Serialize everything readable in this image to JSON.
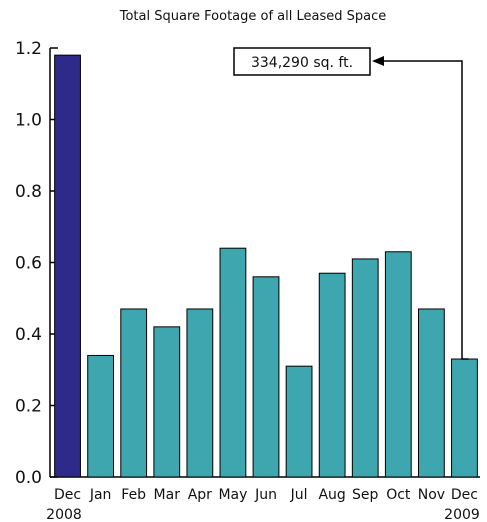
{
  "chart_data": {
    "type": "bar",
    "title": "Total Square Footage of all Leased Space",
    "xlabel": "",
    "ylabel": "",
    "ylim": [
      0,
      1.2
    ],
    "yticks": [
      "0.0",
      "0.2",
      "0.4",
      "0.6",
      "0.8",
      "1.0",
      "1.2"
    ],
    "categories": [
      "Dec",
      "Jan",
      "Feb",
      "Mar",
      "Apr",
      "May",
      "Jun",
      "Jul",
      "Aug",
      "Sep",
      "Oct",
      "Nov",
      "Dec"
    ],
    "values": [
      1.18,
      0.34,
      0.47,
      0.42,
      0.47,
      0.64,
      0.56,
      0.31,
      0.57,
      0.61,
      0.63,
      0.47,
      0.33
    ],
    "year_labels": {
      "start": "2008",
      "end": "2009"
    },
    "colors": {
      "highlight": "#2e2a8a",
      "bar": "#3ea6ae",
      "outline": "#000000"
    },
    "highlight_index": 0,
    "annotation": {
      "text": "334,290 sq. ft.",
      "target_index": 12
    },
    "grid": false
  }
}
